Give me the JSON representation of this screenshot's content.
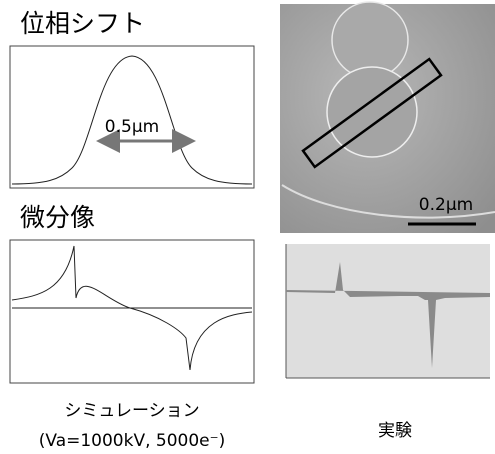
{
  "top_left": {
    "title": "位相シフト",
    "annotation": "0.5μm"
  },
  "micrograph": {
    "scale_label": "0.2μm"
  },
  "bottom_left": {
    "title": "微分像"
  },
  "captions": {
    "simulation": "シミュレーション",
    "simulation_conditions": "(Va=1000kV, 5000e⁻)",
    "experiment": "実験"
  }
}
